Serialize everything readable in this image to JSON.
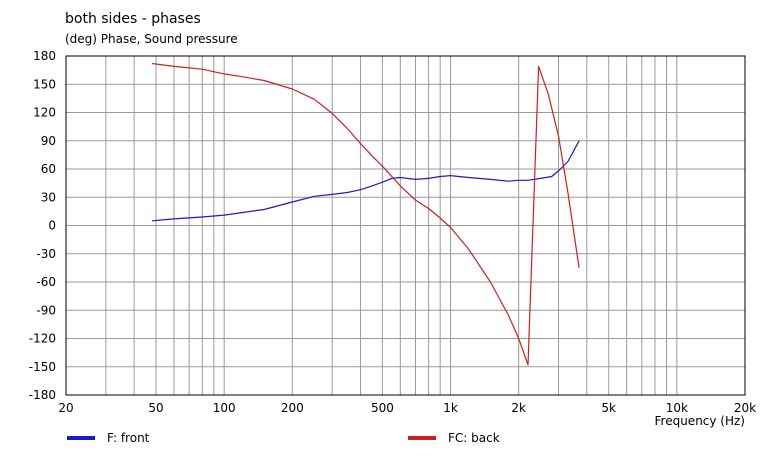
{
  "title": "both sides - phases",
  "subtitle": "(deg)  Phase, Sound pressure",
  "chart_data": {
    "type": "line",
    "title": "both sides - phases",
    "ylabel": "(deg)  Phase, Sound pressure",
    "xlabel": "Frequency  (Hz)",
    "xscale": "log",
    "xlim": [
      20,
      20000
    ],
    "ylim": [
      -180,
      180
    ],
    "grid": true,
    "legend_position": "bottom",
    "x_tick_values": [
      20,
      50,
      100,
      200,
      500,
      1000,
      2000,
      5000,
      10000,
      20000
    ],
    "x_tick_labels": [
      "20",
      "50",
      "100",
      "200",
      "500",
      "1k",
      "2k",
      "5k",
      "10k",
      "20k"
    ],
    "y_tick_values": [
      180,
      150,
      120,
      90,
      60,
      30,
      0,
      -30,
      -60,
      -90,
      -120,
      -150,
      -180
    ],
    "y_tick_labels": [
      "180",
      "150",
      "120",
      "90",
      "60",
      "30",
      "0",
      "-30",
      "-60",
      "-90",
      "-120",
      "-150",
      "-180"
    ],
    "series": [
      {
        "name": "F: front",
        "color": "#1a1acc",
        "x": [
          48,
          60,
          80,
          100,
          150,
          200,
          250,
          300,
          350,
          400,
          450,
          500,
          550,
          600,
          700,
          800,
          900,
          1000,
          1200,
          1500,
          1800,
          2000,
          2200,
          2500,
          2800,
          3000,
          3300,
          3700
        ],
        "y": [
          5,
          7,
          9,
          11,
          17,
          25,
          31,
          33,
          35,
          38,
          42,
          46,
          50,
          51,
          49,
          50,
          52,
          53,
          51,
          49,
          47,
          48,
          48,
          50,
          52,
          58,
          68,
          90
        ]
      },
      {
        "name": "FC: back",
        "color": "#cc2020",
        "x": [
          48,
          60,
          80,
          100,
          120,
          150,
          200,
          250,
          300,
          350,
          400,
          450,
          500,
          600,
          700,
          800,
          900,
          1000,
          1200,
          1500,
          1800,
          2000,
          2200,
          2450,
          2700,
          3000,
          3300,
          3700
        ],
        "y": [
          172,
          169,
          166,
          161,
          158,
          154,
          145,
          134,
          119,
          103,
          87,
          74,
          63,
          42,
          27,
          18,
          8,
          -2,
          -25,
          -60,
          -95,
          -120,
          -148,
          169,
          140,
          95,
          35,
          -45
        ]
      }
    ]
  },
  "legend": {
    "items": [
      {
        "label": "F: front",
        "color": "#1a1acc"
      },
      {
        "label": "FC: back",
        "color": "#cc2020"
      }
    ]
  }
}
